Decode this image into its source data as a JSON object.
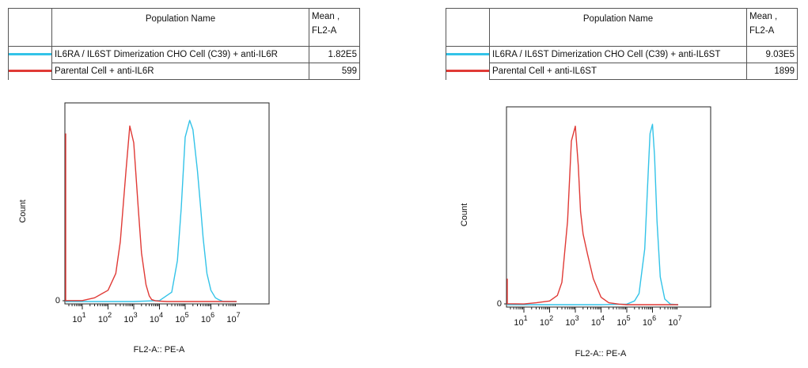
{
  "panels": [
    {
      "legend": {
        "header_name": "Population Name",
        "header_mean_1": "Mean ,",
        "header_mean_2": "FL2-A",
        "rows": [
          {
            "name": "IL6RA / IL6ST Dimerization CHO Cell (C39) + anti-IL6R",
            "mean": "1.82E5",
            "color": "#33c3e8"
          },
          {
            "name": "Parental Cell + anti-IL6R",
            "mean": "599",
            "color": "#e03a36"
          }
        ]
      },
      "chart_data": {
        "type": "line",
        "xlabel": "FL2-A:: PE-A",
        "ylabel": "Count",
        "x_scale": "log",
        "xlim": [
          1,
          10000000
        ],
        "ylim": [
          0,
          1
        ],
        "y_tick_labels": [
          "0"
        ],
        "x_tick_labels": [
          {
            "base": "10",
            "exp": "1"
          },
          {
            "base": "10",
            "exp": "2"
          },
          {
            "base": "10",
            "exp": "3"
          },
          {
            "base": "10",
            "exp": "4"
          },
          {
            "base": "10",
            "exp": "5"
          },
          {
            "base": "10",
            "exp": "6"
          },
          {
            "base": "10",
            "exp": "7"
          }
        ],
        "series": [
          {
            "name": "IL6RA / IL6ST Dimerization CHO Cell (C39) + anti-IL6R",
            "color": "#33c3e8",
            "x": [
              1,
              100,
              1000,
              10000,
              30000,
              50000,
              70000,
              100000,
              150000,
              200000,
              300000,
              400000,
              500000,
              700000,
              1000000,
              1500000,
              2000000,
              3000000,
              10000000
            ],
            "y": [
              0,
              0,
              0,
              0.005,
              0.05,
              0.22,
              0.5,
              0.88,
              0.97,
              0.92,
              0.7,
              0.5,
              0.34,
              0.15,
              0.06,
              0.02,
              0.01,
              0,
              0
            ]
          },
          {
            "name": "Parental Cell + anti-IL6R",
            "color": "#e03a36",
            "x": [
              1,
              1.2,
              1.5,
              10,
              30,
              100,
              200,
              300,
              500,
              700,
              1000,
              1500,
              2000,
              3000,
              4000,
              5000,
              7000,
              10000,
              20000,
              10000000
            ],
            "y": [
              0.9,
              0.1,
              0.005,
              0.005,
              0.02,
              0.06,
              0.15,
              0.32,
              0.7,
              0.94,
              0.85,
              0.5,
              0.26,
              0.09,
              0.03,
              0.01,
              0.004,
              0.002,
              0,
              0
            ]
          }
        ]
      }
    },
    {
      "legend": {
        "header_name": "Population Name",
        "header_mean_1": "Mean ,",
        "header_mean_2": "FL2-A",
        "rows": [
          {
            "name": "IL6RA / IL6ST Dimerization CHO Cell (C39) + anti-IL6ST",
            "mean": "9.03E5",
            "color": "#33c3e8"
          },
          {
            "name": "Parental Cell + anti-IL6ST",
            "mean": "1899",
            "color": "#e03a36"
          }
        ]
      },
      "chart_data": {
        "type": "line",
        "xlabel": "FL2-A:: PE-A",
        "ylabel": "Count",
        "x_scale": "log",
        "xlim": [
          1,
          10000000
        ],
        "ylim": [
          0,
          1
        ],
        "y_tick_labels": [
          "0"
        ],
        "x_tick_labels": [
          {
            "base": "10",
            "exp": "1"
          },
          {
            "base": "10",
            "exp": "2"
          },
          {
            "base": "10",
            "exp": "3"
          },
          {
            "base": "10",
            "exp": "4"
          },
          {
            "base": "10",
            "exp": "5"
          },
          {
            "base": "10",
            "exp": "6"
          },
          {
            "base": "10",
            "exp": "7"
          }
        ],
        "series": [
          {
            "name": "IL6RA / IL6ST Dimerization CHO Cell (C39) + anti-IL6ST",
            "color": "#33c3e8",
            "x": [
              1,
              10000,
              100000,
              200000,
              300000,
              500000,
              700000,
              800000,
              1000000,
              1200000,
              1500000,
              2000000,
              3000000,
              5000000,
              10000000
            ],
            "y": [
              0,
              0,
              0.003,
              0.02,
              0.06,
              0.3,
              0.75,
              0.92,
              0.97,
              0.8,
              0.45,
              0.15,
              0.03,
              0.003,
              0
            ]
          },
          {
            "name": "Parental Cell + anti-IL6ST",
            "color": "#e03a36",
            "x": [
              1,
              1.2,
              1.5,
              10,
              30,
              100,
              200,
              300,
              500,
              700,
              1000,
              1300,
              1600,
              2000,
              3000,
              5000,
              10000,
              20000,
              50000,
              100000,
              10000000
            ],
            "y": [
              0.14,
              0.03,
              0.005,
              0.004,
              0.01,
              0.02,
              0.05,
              0.12,
              0.45,
              0.88,
              0.96,
              0.75,
              0.5,
              0.38,
              0.27,
              0.14,
              0.04,
              0.01,
              0.003,
              0,
              0
            ]
          }
        ]
      }
    }
  ]
}
